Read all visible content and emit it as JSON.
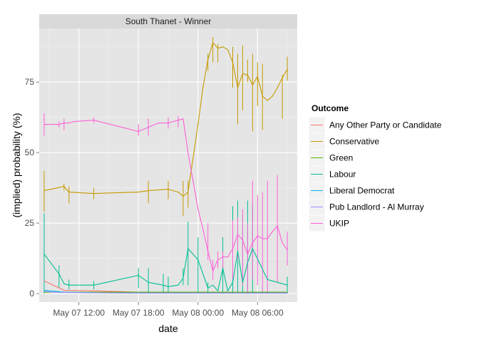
{
  "chart_data": {
    "type": "line",
    "panel_title": "South Thanet - Winner",
    "xlabel": "date",
    "ylabel": "(implied) probability (%)",
    "ylim": [
      -3,
      94
    ],
    "xlim": [
      "May 07 08:00",
      "May 08 08:00"
    ],
    "x_ticks": [
      {
        "t": 12,
        "label": "May 07 12:00"
      },
      {
        "t": 18,
        "label": "May 07 18:00"
      },
      {
        "t": 24,
        "label": "May 08 00:00"
      },
      {
        "t": 30,
        "label": "May 08 06:00"
      }
    ],
    "y_ticks": [
      0,
      25,
      50,
      75
    ],
    "legend_title": "Outcome",
    "legend_position": "right",
    "grid": true,
    "series": [
      {
        "name": "Any Other Party or Candidate",
        "color": "#F8766D",
        "x": [
          8.5,
          10.5,
          13.5,
          18,
          20,
          30,
          33
        ],
        "values": [
          4.5,
          1.2,
          1.0,
          0.5,
          0.3,
          0.2,
          0.2
        ],
        "ranges": []
      },
      {
        "name": "Conservative",
        "color": "#C49A00",
        "x": [
          8.5,
          10.5,
          11,
          13.5,
          18,
          19,
          21,
          22,
          22.5,
          23,
          23.5,
          24,
          24.5,
          25,
          25.5,
          26,
          26.5,
          27,
          27.5,
          28,
          28.5,
          29,
          29.5,
          30,
          30.5,
          31,
          31.5,
          32,
          32.5,
          33
        ],
        "values": [
          36.5,
          38,
          36,
          35.5,
          36,
          36.5,
          37,
          36,
          34.5,
          36,
          48,
          60,
          73,
          83,
          89,
          87,
          87.5,
          86.5,
          82,
          73,
          78,
          77.5,
          74,
          77,
          70,
          68.5,
          70,
          73,
          76.5,
          79.5
        ],
        "ranges": [
          {
            "x": 8.5,
            "lo": 29,
            "hi": 43.5
          },
          {
            "x": 10.5,
            "lo": 36.5,
            "hi": 39
          },
          {
            "x": 11,
            "lo": 32,
            "hi": 38
          },
          {
            "x": 13.5,
            "lo": 33.5,
            "hi": 37.5
          },
          {
            "x": 19,
            "lo": 32,
            "hi": 40
          },
          {
            "x": 21,
            "lo": 33.5,
            "hi": 40
          },
          {
            "x": 22.5,
            "lo": 27.5,
            "hi": 40
          },
          {
            "x": 23,
            "lo": 30.5,
            "hi": 40
          },
          {
            "x": 25,
            "lo": 79,
            "hi": 85
          },
          {
            "x": 25.5,
            "lo": 82,
            "hi": 91
          },
          {
            "x": 26,
            "lo": 82,
            "hi": 88.5
          },
          {
            "x": 27.5,
            "lo": 73,
            "hi": 87.5
          },
          {
            "x": 28,
            "lo": 60,
            "hi": 85
          },
          {
            "x": 28.5,
            "lo": 65,
            "hi": 88
          },
          {
            "x": 29,
            "lo": 75,
            "hi": 83
          },
          {
            "x": 29.5,
            "lo": 57.5,
            "hi": 85
          },
          {
            "x": 30,
            "lo": 66.5,
            "hi": 82
          },
          {
            "x": 30.5,
            "lo": 58,
            "hi": 81.5
          },
          {
            "x": 32.5,
            "lo": 62,
            "hi": 77.5
          },
          {
            "x": 33,
            "lo": 75.5,
            "hi": 84
          }
        ]
      },
      {
        "name": "Green",
        "color": "#53B400",
        "x": [
          8.5,
          33
        ],
        "values": [
          0.5,
          0.5
        ],
        "ranges": []
      },
      {
        "name": "Labour",
        "color": "#00C094",
        "x": [
          8.5,
          10,
          10.5,
          11,
          13.5,
          18,
          19,
          20.5,
          21,
          22,
          22.5,
          23,
          24,
          25,
          25.5,
          26,
          26.5,
          27,
          27.5,
          28,
          28.5,
          29,
          29.5,
          31,
          31.5,
          33
        ],
        "values": [
          14,
          7,
          3.5,
          3,
          3,
          6.5,
          4,
          3,
          2.5,
          3,
          5.5,
          16,
          12,
          2,
          3,
          1,
          9,
          1,
          4,
          15,
          4,
          11,
          16,
          5,
          4.5,
          3
        ],
        "ranges": [
          {
            "x": 8.5,
            "lo": 0,
            "hi": 28.5
          },
          {
            "x": 10,
            "lo": 2,
            "hi": 10
          },
          {
            "x": 11,
            "lo": 1.5,
            "hi": 5
          },
          {
            "x": 13.5,
            "lo": 1.5,
            "hi": 4.5
          },
          {
            "x": 18,
            "lo": 2,
            "hi": 9
          },
          {
            "x": 19,
            "lo": 0,
            "hi": 9
          },
          {
            "x": 20.5,
            "lo": 0,
            "hi": 7
          },
          {
            "x": 21,
            "lo": 0,
            "hi": 6
          },
          {
            "x": 22.5,
            "lo": 3,
            "hi": 9
          },
          {
            "x": 23,
            "lo": 3,
            "hi": 25.5
          },
          {
            "x": 24,
            "lo": 0,
            "hi": 20
          },
          {
            "x": 25,
            "lo": 0,
            "hi": 4
          },
          {
            "x": 26.5,
            "lo": 0,
            "hi": 20
          },
          {
            "x": 27.5,
            "lo": 0,
            "hi": 31
          },
          {
            "x": 28,
            "lo": 0,
            "hi": 33
          },
          {
            "x": 28.5,
            "lo": 0,
            "hi": 28
          },
          {
            "x": 29,
            "lo": 0,
            "hi": 33
          },
          {
            "x": 29.5,
            "lo": 0,
            "hi": 32
          },
          {
            "x": 33,
            "lo": 0,
            "hi": 6
          }
        ]
      },
      {
        "name": "Liberal Democrat",
        "color": "#00B6EB",
        "x": [
          8.5,
          10.5,
          13.5,
          18,
          20,
          33
        ],
        "values": [
          1.2,
          0.5,
          0.3,
          0.2,
          0.2,
          0.2
        ],
        "ranges": []
      },
      {
        "name": "Pub Landlord - Al Murray",
        "color": "#A58AFF",
        "x": [
          8.5,
          9.5,
          10.5,
          13.5,
          18,
          20,
          33
        ],
        "values": [
          0.8,
          0.5,
          0.4,
          0.3,
          0.2,
          0.2,
          0.2
        ],
        "ranges": []
      },
      {
        "name": "UKIP",
        "color": "#FB61D7",
        "x": [
          8.5,
          10,
          10.5,
          11,
          11.5,
          13.5,
          18,
          19,
          20,
          21,
          21.5,
          22,
          22.5,
          23,
          23.5,
          24,
          24.5,
          25,
          25.5,
          26,
          26.5,
          27,
          27.5,
          28,
          28.5,
          29,
          29.5,
          30,
          30.5,
          31,
          31.5,
          32,
          32.5,
          33
        ],
        "values": [
          60,
          60,
          60.5,
          60.5,
          61,
          61.5,
          57.5,
          59,
          60.5,
          60.5,
          61,
          61.5,
          62,
          50,
          40,
          30,
          23,
          15,
          8,
          12,
          13,
          13,
          16,
          21,
          19,
          14,
          18,
          20.5,
          19.5,
          19.5,
          22,
          24,
          18,
          15.5
        ],
        "ranges": [
          {
            "x": 8.5,
            "lo": 56,
            "hi": 64
          },
          {
            "x": 10,
            "lo": 59,
            "hi": 61
          },
          {
            "x": 10.5,
            "lo": 58,
            "hi": 62
          },
          {
            "x": 13.5,
            "lo": 60.5,
            "hi": 62.5
          },
          {
            "x": 18,
            "lo": 56,
            "hi": 60
          },
          {
            "x": 19,
            "lo": 56,
            "hi": 62
          },
          {
            "x": 21,
            "lo": 58.5,
            "hi": 62.5
          },
          {
            "x": 22,
            "lo": 59,
            "hi": 63
          },
          {
            "x": 25,
            "lo": 12,
            "hi": 25
          },
          {
            "x": 25.5,
            "lo": 5,
            "hi": 12
          },
          {
            "x": 26,
            "lo": 9,
            "hi": 15
          },
          {
            "x": 26.5,
            "lo": 9,
            "hi": 15
          },
          {
            "x": 27.5,
            "lo": 5,
            "hi": 26
          },
          {
            "x": 28,
            "lo": 12,
            "hi": 27
          },
          {
            "x": 28.5,
            "lo": 3,
            "hi": 30
          },
          {
            "x": 29,
            "lo": 0,
            "hi": 25
          },
          {
            "x": 29.5,
            "lo": 5,
            "hi": 40
          },
          {
            "x": 30,
            "lo": 3,
            "hi": 35
          },
          {
            "x": 30.5,
            "lo": 0,
            "hi": 36
          },
          {
            "x": 31,
            "lo": 0,
            "hi": 40
          },
          {
            "x": 32,
            "lo": 4,
            "hi": 42
          },
          {
            "x": 33,
            "lo": 10,
            "hi": 22
          }
        ]
      }
    ]
  }
}
